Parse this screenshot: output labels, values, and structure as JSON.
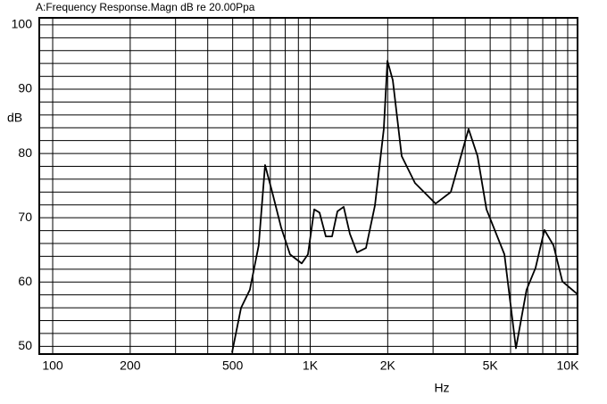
{
  "chart_data": {
    "type": "line",
    "title": "A:Frequency Response.Magn dB re 20.00Ppa",
    "xlabel": "Hz",
    "ylabel": "dB",
    "xscale": "log",
    "grid": true,
    "color": "#000000",
    "xlim": [
      88.7,
      10920
    ],
    "ylim": [
      48.8,
      101.1
    ],
    "xticks": [
      100,
      200,
      500,
      {
        "value": 1000,
        "label": "1K"
      },
      {
        "value": 2000,
        "label": "2K"
      },
      {
        "value": 5000,
        "label": "5K"
      },
      {
        "value": 10000,
        "label": "10K"
      }
    ],
    "yticks": [
      50,
      60,
      70,
      80,
      90,
      100
    ],
    "xgrid_minor": [
      300,
      400,
      600,
      700,
      800,
      900,
      3000,
      4000,
      6000,
      7000,
      8000,
      9000
    ],
    "ygrid_minor": [
      52,
      54,
      56,
      58,
      62,
      64,
      66,
      68,
      72,
      74,
      76,
      78,
      82,
      84,
      86,
      88,
      92,
      94,
      96,
      98
    ],
    "x": [
      497,
      539,
      583,
      631,
      668,
      712,
      771,
      835,
      927,
      980,
      1037,
      1087,
      1150,
      1216,
      1276,
      1349,
      1426,
      1520,
      1647,
      1784,
      1931,
      1995,
      2093,
      2266,
      2553,
      3069,
      3515,
      4121,
      4465,
      4838,
      5679,
      6295,
      6922,
      7500,
      8123,
      8808,
      9536,
      10918
    ],
    "values": [
      49.0,
      56.0,
      58.8,
      65.7,
      78.2,
      74.0,
      68.5,
      64.3,
      62.9,
      64.3,
      71.3,
      70.8,
      67.1,
      67.1,
      71.0,
      71.7,
      67.5,
      64.6,
      65.3,
      71.9,
      83.8,
      94.4,
      91.4,
      79.6,
      75.4,
      72.2,
      74.0,
      83.8,
      79.6,
      71.3,
      64.3,
      49.7,
      58.8,
      62.2,
      68.1,
      65.7,
      60.1,
      58.1
    ]
  }
}
